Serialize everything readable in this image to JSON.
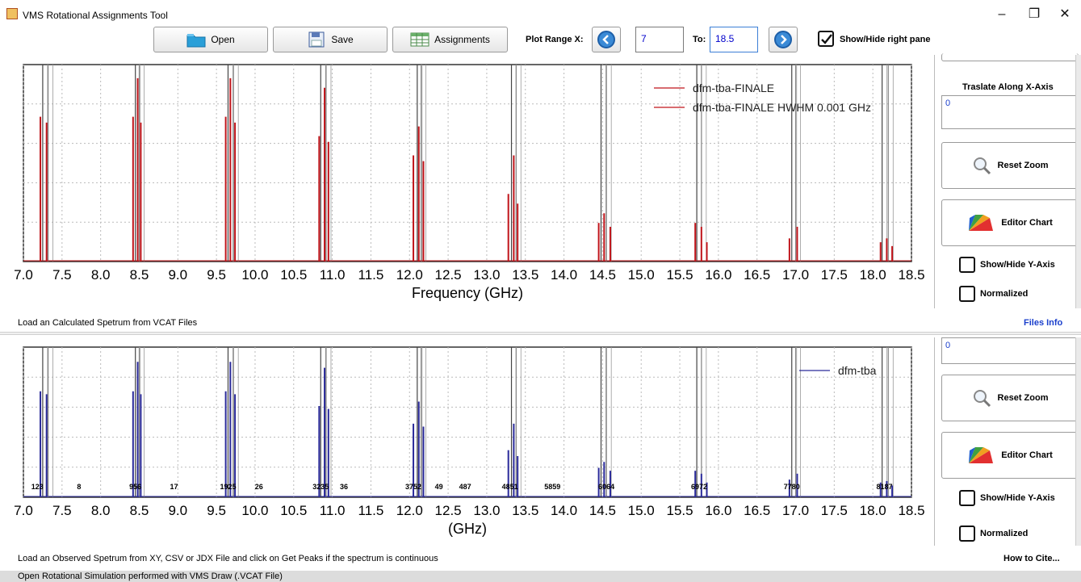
{
  "window": {
    "title": "VMS Rotational Assignments Tool"
  },
  "toolbar": {
    "open_label": "Open",
    "save_label": "Save",
    "assignments_label": "Assignments",
    "plot_range_label": "Plot Range X:",
    "range_from": "7",
    "to_label": "To:",
    "range_to": "18.5",
    "show_hide_right_pane": "Show/Hide right pane"
  },
  "top_chart": {
    "xlabel": "Frequency (GHz)",
    "legend": [
      "dfm-tba-FINALE",
      "dfm-tba-FINALE    HWHM 0.001 GHz"
    ],
    "tick_labels": [
      "7.0",
      "7.5",
      "8.0",
      "8.5",
      "9.0",
      "9.5",
      "10.0",
      "10.5",
      "11.0",
      "11.5",
      "12.0",
      "12.5",
      "13.0",
      "13.5",
      "14.0",
      "14.5",
      "15.0",
      "15.5",
      "16.0",
      "16.5",
      "17.0",
      "17.5",
      "18.0",
      "18.5"
    ],
    "status": "Load an Calculated Spetrum from VCAT Files",
    "files_info": "Files Info"
  },
  "bottom_chart": {
    "xlabel": "(GHz)",
    "legend": [
      "dfm-tba"
    ],
    "tick_labels": [
      "7.0",
      "7.5",
      "8.0",
      "8.5",
      "9.0",
      "9.5",
      "10.0",
      "10.5",
      "11.0",
      "11.5",
      "12.0",
      "12.5",
      "13.0",
      "13.5",
      "14.0",
      "14.5",
      "15.0",
      "15.5",
      "16.0",
      "16.5",
      "17.0",
      "17.5",
      "18.0",
      "18.5"
    ],
    "peak_labels": [
      {
        "f": 7.18,
        "t": "123"
      },
      {
        "f": 7.72,
        "t": "8"
      },
      {
        "f": 8.45,
        "t": "956"
      },
      {
        "f": 8.95,
        "t": "17"
      },
      {
        "f": 9.65,
        "t": "1925"
      },
      {
        "f": 10.05,
        "t": "26"
      },
      {
        "f": 10.85,
        "t": "3235"
      },
      {
        "f": 11.15,
        "t": "36"
      },
      {
        "f": 12.05,
        "t": "3752"
      },
      {
        "f": 12.38,
        "t": "49"
      },
      {
        "f": 12.72,
        "t": "487"
      },
      {
        "f": 13.3,
        "t": "4851"
      },
      {
        "f": 13.85,
        "t": "5859"
      },
      {
        "f": 14.55,
        "t": "6064"
      },
      {
        "f": 15.75,
        "t": "6972"
      },
      {
        "f": 16.95,
        "t": "7780"
      },
      {
        "f": 18.15,
        "t": "8187"
      }
    ],
    "status": "Load an Observed Spetrum from XY, CSV or JDX File and click on Get Peaks if the spectrum is continuous",
    "how_to_cite": "How to Cite..."
  },
  "right_pane_top": {
    "translate_label": "Traslate Along X-Axis",
    "translate_value": "0",
    "reset_zoom": "Reset Zoom",
    "editor_chart": "Editor Chart",
    "show_hide_y": "Show/Hide Y-Axis",
    "normalized": "Normalized"
  },
  "right_pane_bottom": {
    "translate_value": "0",
    "reset_zoom": "Reset Zoom",
    "editor_chart": "Editor Chart",
    "show_hide_y": "Show/Hide Y-Axis",
    "normalized": "Normalized"
  },
  "status_bar": "Open Rotational Simulation performed with VMS Draw (.VCAT File)",
  "chart_data": [
    {
      "type": "line",
      "xlabel": "Frequency (GHz)",
      "xlim": [
        7.0,
        18.5
      ],
      "series": [
        {
          "name": "dfm-tba-FINALE",
          "color": "#c0141a"
        }
      ],
      "assignment_lines": [
        7.25,
        7.32,
        8.45,
        8.5,
        9.65,
        9.72,
        10.85,
        10.92,
        12.1,
        12.15,
        13.32,
        13.38,
        14.48,
        14.55,
        15.72,
        15.78,
        16.95,
        17.0,
        18.12,
        18.2
      ],
      "peaks": [
        {
          "x": 7.22,
          "y": 0.75
        },
        {
          "x": 7.3,
          "y": 0.72
        },
        {
          "x": 8.42,
          "y": 0.75
        },
        {
          "x": 8.48,
          "y": 0.95
        },
        {
          "x": 8.52,
          "y": 0.72
        },
        {
          "x": 9.62,
          "y": 0.75
        },
        {
          "x": 9.68,
          "y": 0.95
        },
        {
          "x": 9.74,
          "y": 0.72
        },
        {
          "x": 10.83,
          "y": 0.65
        },
        {
          "x": 10.9,
          "y": 0.9
        },
        {
          "x": 10.95,
          "y": 0.62
        },
        {
          "x": 12.05,
          "y": 0.55
        },
        {
          "x": 12.12,
          "y": 0.7
        },
        {
          "x": 12.18,
          "y": 0.52
        },
        {
          "x": 13.28,
          "y": 0.35
        },
        {
          "x": 13.35,
          "y": 0.55
        },
        {
          "x": 13.4,
          "y": 0.3
        },
        {
          "x": 14.45,
          "y": 0.2
        },
        {
          "x": 14.52,
          "y": 0.25
        },
        {
          "x": 14.6,
          "y": 0.18
        },
        {
          "x": 15.7,
          "y": 0.2
        },
        {
          "x": 15.78,
          "y": 0.18
        },
        {
          "x": 15.85,
          "y": 0.1
        },
        {
          "x": 16.92,
          "y": 0.12
        },
        {
          "x": 17.02,
          "y": 0.18
        },
        {
          "x": 18.1,
          "y": 0.1
        },
        {
          "x": 18.18,
          "y": 0.12
        },
        {
          "x": 18.25,
          "y": 0.08
        }
      ],
      "grid": true,
      "legend": "top-right"
    },
    {
      "type": "bar",
      "xlabel": "(GHz)",
      "xlim": [
        7.0,
        18.5
      ],
      "series": [
        {
          "name": "dfm-tba",
          "color": "#2a2a9a"
        }
      ],
      "assignment_lines": [
        7.25,
        7.32,
        8.45,
        8.5,
        9.65,
        9.72,
        10.85,
        10.92,
        12.1,
        12.15,
        13.32,
        13.38,
        14.48,
        14.55,
        15.72,
        15.78,
        16.95,
        17.0,
        18.12,
        18.2
      ],
      "peaks": [
        {
          "x": 7.22,
          "y": 0.72
        },
        {
          "x": 7.3,
          "y": 0.7
        },
        {
          "x": 8.42,
          "y": 0.72
        },
        {
          "x": 8.48,
          "y": 0.92
        },
        {
          "x": 8.52,
          "y": 0.7
        },
        {
          "x": 9.62,
          "y": 0.72
        },
        {
          "x": 9.68,
          "y": 0.92
        },
        {
          "x": 9.74,
          "y": 0.7
        },
        {
          "x": 10.83,
          "y": 0.62
        },
        {
          "x": 10.9,
          "y": 0.88
        },
        {
          "x": 10.95,
          "y": 0.6
        },
        {
          "x": 12.05,
          "y": 0.5
        },
        {
          "x": 12.12,
          "y": 0.65
        },
        {
          "x": 12.18,
          "y": 0.48
        },
        {
          "x": 13.28,
          "y": 0.32
        },
        {
          "x": 13.35,
          "y": 0.5
        },
        {
          "x": 13.4,
          "y": 0.28
        },
        {
          "x": 14.45,
          "y": 0.2
        },
        {
          "x": 14.52,
          "y": 0.24
        },
        {
          "x": 14.6,
          "y": 0.18
        },
        {
          "x": 15.7,
          "y": 0.18
        },
        {
          "x": 15.78,
          "y": 0.16
        },
        {
          "x": 15.85,
          "y": 0.1
        },
        {
          "x": 16.92,
          "y": 0.12
        },
        {
          "x": 17.02,
          "y": 0.16
        },
        {
          "x": 18.1,
          "y": 0.1
        },
        {
          "x": 18.18,
          "y": 0.11
        },
        {
          "x": 18.25,
          "y": 0.08
        }
      ],
      "grid": true,
      "legend": "top-right"
    }
  ]
}
